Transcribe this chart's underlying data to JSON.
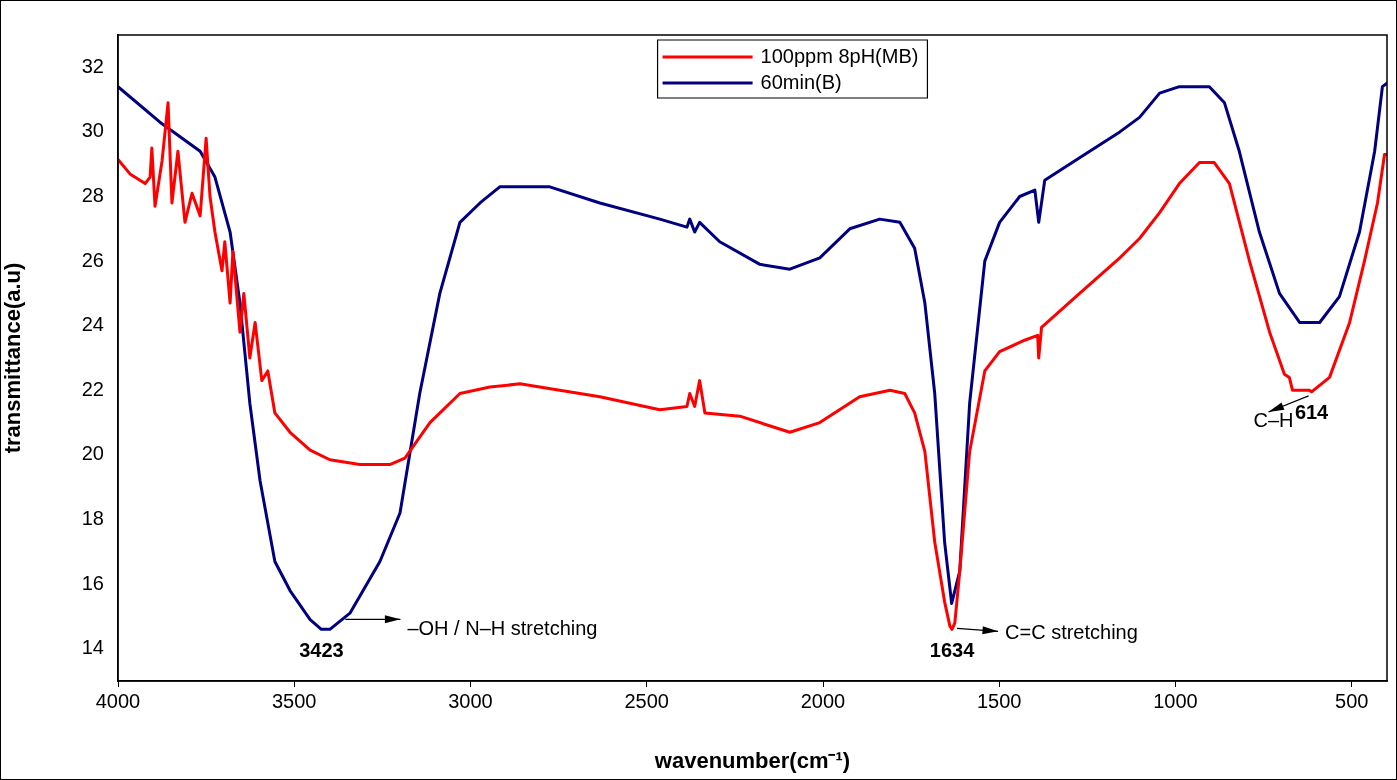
{
  "chart_data": {
    "type": "line",
    "xlabel": "wavenumber(cm⁻¹)",
    "ylabel": "transmittance(a.u)",
    "xlim": [
      4000,
      400
    ],
    "xticks": [
      4000,
      3500,
      3000,
      2500,
      2000,
      1500,
      1000,
      500
    ],
    "ylim": [
      13,
      33
    ],
    "yticks": [
      14,
      16,
      18,
      20,
      22,
      24,
      26,
      28,
      30,
      32
    ],
    "grid": false,
    "legend": "top",
    "marker": "none",
    "line_style": "solid",
    "series": [
      {
        "name": "100ppm 8pH(MB)",
        "color": "#ff0000",
        "x": [
          4000,
          3966,
          3923,
          3909,
          3904,
          3895,
          3875,
          3858,
          3847,
          3830,
          3810,
          3790,
          3767,
          3750,
          3739,
          3725,
          3705,
          3697,
          3682,
          3674,
          3654,
          3643,
          3626,
          3611,
          3592,
          3575,
          3555,
          3512,
          3455,
          3399,
          3314,
          3229,
          3186,
          3115,
          3030,
          2945,
          2860,
          2747,
          2633,
          2463,
          2386,
          2378,
          2364,
          2350,
          2335,
          2236,
          2094,
          2009,
          1896,
          1810,
          1768,
          1740,
          1711,
          1683,
          1655,
          1640,
          1634,
          1626,
          1612,
          1584,
          1541,
          1499,
          1428,
          1391,
          1388,
          1380,
          1272,
          1158,
          1102,
          1045,
          989,
          932,
          890,
          847,
          790,
          733,
          691,
          677,
          668,
          620,
          614,
          563,
          506,
          464,
          427,
          407,
          401
        ],
        "values": [
          29.15,
          28.7,
          28.4,
          28.6,
          29.5,
          27.7,
          29.1,
          30.9,
          27.8,
          29.4,
          27.2,
          28.1,
          27.4,
          29.8,
          28.0,
          26.9,
          25.7,
          26.6,
          24.7,
          26.3,
          23.8,
          25.0,
          23.0,
          24.1,
          22.3,
          22.6,
          21.3,
          20.7,
          20.15,
          19.85,
          19.7,
          19.7,
          19.9,
          21.0,
          21.9,
          22.1,
          22.2,
          22.0,
          21.8,
          21.4,
          21.5,
          21.9,
          21.5,
          22.3,
          21.3,
          21.2,
          20.7,
          21.0,
          21.8,
          22.0,
          21.9,
          21.3,
          20.1,
          17.3,
          15.45,
          14.7,
          14.6,
          14.8,
          16.4,
          20.1,
          22.6,
          23.2,
          23.55,
          23.7,
          23.0,
          23.95,
          25.0,
          26.1,
          26.7,
          27.5,
          28.4,
          29.05,
          29.05,
          28.4,
          26.0,
          23.8,
          22.5,
          22.4,
          22.0,
          22.0,
          21.95,
          22.4,
          24.1,
          26.0,
          27.8,
          29.3,
          29.3
        ]
      },
      {
        "name": "60min(B)",
        "color": "#000080",
        "x": [
          4000,
          3881,
          3767,
          3725,
          3682,
          3654,
          3626,
          3597,
          3555,
          3512,
          3455,
          3423,
          3399,
          3342,
          3257,
          3200,
          3144,
          3087,
          3030,
          2973,
          2917,
          2860,
          2775,
          2633,
          2463,
          2386,
          2378,
          2364,
          2350,
          2293,
          2179,
          2094,
          2009,
          1924,
          1839,
          1782,
          1740,
          1711,
          1683,
          1655,
          1635,
          1612,
          1584,
          1541,
          1499,
          1442,
          1399,
          1388,
          1371,
          1272,
          1158,
          1102,
          1045,
          989,
          904,
          861,
          819,
          762,
          705,
          648,
          591,
          535,
          478,
          435,
          413,
          401
        ],
        "values": [
          31.4,
          30.3,
          29.4,
          28.6,
          26.9,
          24.7,
          21.6,
          19.2,
          16.7,
          15.8,
          14.9,
          14.6,
          14.6,
          15.1,
          16.7,
          18.2,
          21.9,
          25.0,
          27.2,
          27.8,
          28.3,
          28.3,
          28.3,
          27.8,
          27.3,
          27.05,
          27.3,
          26.9,
          27.2,
          26.6,
          25.9,
          25.75,
          26.1,
          27.0,
          27.3,
          27.2,
          26.4,
          24.7,
          21.9,
          17.3,
          15.4,
          16.4,
          21.6,
          26.0,
          27.2,
          28.0,
          28.2,
          27.2,
          28.5,
          29.2,
          30.0,
          30.45,
          31.2,
          31.4,
          31.4,
          30.9,
          29.4,
          26.9,
          25.0,
          24.1,
          24.1,
          24.9,
          26.9,
          29.4,
          31.4,
          31.5
        ]
      }
    ],
    "annotations": [
      {
        "text": "3423",
        "x": 3423,
        "y": 14.6
      },
      "–OH / N–H stretching",
      {
        "text": "1634",
        "x": 1634,
        "y": 14.6
      },
      "C=C stretching",
      {
        "text": "614",
        "x": 614,
        "y": 21.95
      },
      "C–H"
    ]
  }
}
